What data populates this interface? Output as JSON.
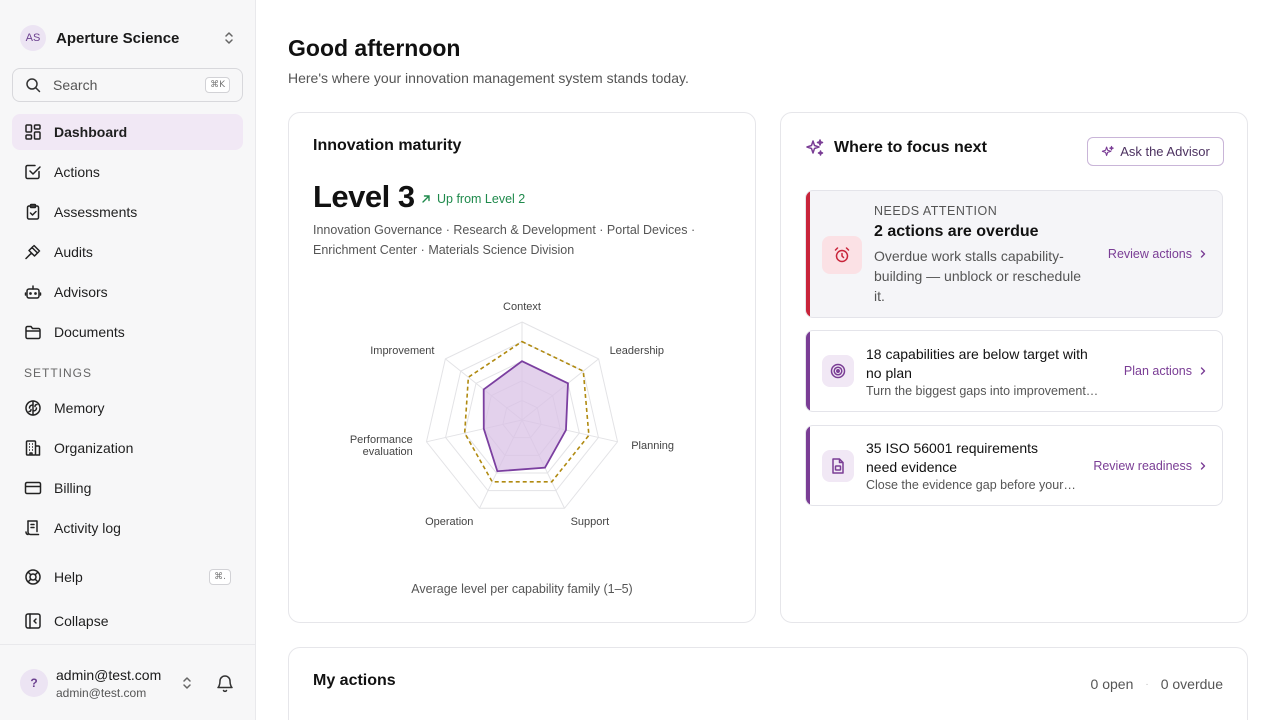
{
  "org": {
    "initials": "AS",
    "name": "Aperture Science"
  },
  "search": {
    "label": "Search",
    "shortcut": "⌘K"
  },
  "nav": {
    "items": [
      {
        "label": "Dashboard",
        "icon": "dashboard-icon"
      },
      {
        "label": "Actions",
        "icon": "checkbox-icon"
      },
      {
        "label": "Assessments",
        "icon": "clipboard-icon"
      },
      {
        "label": "Audits",
        "icon": "gavel-icon"
      },
      {
        "label": "Advisors",
        "icon": "bot-icon"
      },
      {
        "label": "Documents",
        "icon": "folder-icon"
      }
    ],
    "settings_label": "SETTINGS",
    "settings": [
      {
        "label": "Memory",
        "icon": "brain-icon"
      },
      {
        "label": "Organization",
        "icon": "building-icon"
      },
      {
        "label": "Billing",
        "icon": "card-icon"
      },
      {
        "label": "Activity log",
        "icon": "log-icon"
      }
    ],
    "help": {
      "label": "Help",
      "shortcut": "⌘."
    },
    "collapse": {
      "label": "Collapse"
    }
  },
  "user": {
    "initial": "?",
    "name": "admin@test.com",
    "email": "admin@test.com"
  },
  "header": {
    "greeting": "Good afternoon",
    "subtitle": "Here's where your innovation management system stands today."
  },
  "maturity": {
    "title": "Innovation maturity",
    "level": "Level 3",
    "change": "Up from Level 2",
    "families_line1": "Innovation Governance · Research & Development · Portal Devices ·",
    "families_line2": "Enrichment Center · Materials Science Division",
    "caption": "Average level per capability family (1–5)",
    "chart_data": {
      "type": "radar",
      "axes": [
        "Context",
        "Leadership",
        "Planning",
        "Support",
        "Operation",
        "Performance evaluation",
        "Improvement"
      ],
      "range": [
        0,
        5
      ],
      "series": [
        {
          "values": [
            3.0,
            3.0,
            2.3,
            2.7,
            2.9,
            2.0,
            2.5
          ],
          "color": "#7b3fa0",
          "fill": "#d9c2e6",
          "style": "solid"
        },
        {
          "values": [
            4.0,
            4.0,
            3.5,
            3.5,
            3.5,
            3.0,
            3.5
          ],
          "color": "#b08a10",
          "style": "dashed"
        }
      ]
    }
  },
  "focus": {
    "title": "Where to focus next",
    "ask_label": "Ask the Advisor",
    "items": [
      {
        "kicker": "NEEDS ATTENTION",
        "title": "2 actions are overdue",
        "desc_line1": "Overdue work stalls capability-",
        "desc_line2": "building — unblock or reschedule",
        "desc_line3": "it.",
        "link": "Review actions",
        "accent": "#c8243a"
      },
      {
        "title_line1": "18 capabilities are below target with",
        "title_line2": "no plan",
        "desc": "Turn the biggest gaps into improvement…",
        "link": "Plan actions",
        "accent": "#7a3d95"
      },
      {
        "title_line1": "35 ISO 56001 requirements",
        "title_line2": "need evidence",
        "desc": "Close the evidence gap before your…",
        "link": "Review readiness",
        "accent": "#7a3d95"
      }
    ]
  },
  "my_actions": {
    "title": "My actions",
    "open": "0 open",
    "overdue": "0 overdue"
  }
}
